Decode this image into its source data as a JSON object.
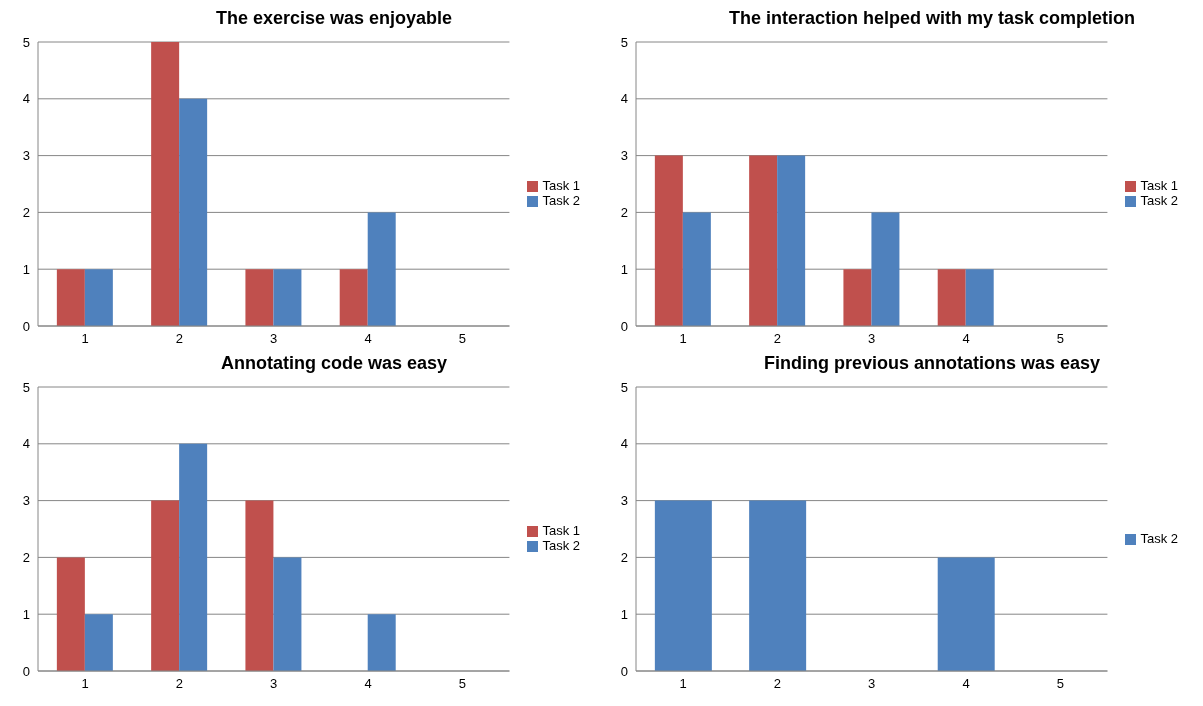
{
  "chart_data": [
    {
      "type": "bar",
      "title": "The exercise was enjoyable",
      "categories": [
        "1",
        "2",
        "3",
        "4",
        "5"
      ],
      "series": [
        {
          "name": "Task 1",
          "color": "#c0504d",
          "values": [
            1,
            5,
            1,
            1,
            0
          ]
        },
        {
          "name": "Task 2",
          "color": "#4f81bd",
          "values": [
            1,
            4,
            1,
            2,
            0
          ]
        }
      ],
      "ylim": [
        0,
        5
      ],
      "yticks": [
        0,
        1,
        2,
        3,
        4,
        5
      ],
      "grid": "y",
      "legend": "right"
    },
    {
      "type": "bar",
      "title": "The interaction helped with my task completion",
      "categories": [
        "1",
        "2",
        "3",
        "4",
        "5"
      ],
      "series": [
        {
          "name": "Task 1",
          "color": "#c0504d",
          "values": [
            3,
            3,
            1,
            1,
            0
          ]
        },
        {
          "name": "Task 2",
          "color": "#4f81bd",
          "values": [
            2,
            3,
            2,
            1,
            0
          ]
        }
      ],
      "ylim": [
        0,
        5
      ],
      "yticks": [
        0,
        1,
        2,
        3,
        4,
        5
      ],
      "grid": "y",
      "legend": "right"
    },
    {
      "type": "bar",
      "title": "Annotating code was easy",
      "categories": [
        "1",
        "2",
        "3",
        "4",
        "5"
      ],
      "series": [
        {
          "name": "Task 1",
          "color": "#c0504d",
          "values": [
            2,
            3,
            3,
            0,
            0
          ]
        },
        {
          "name": "Task 2",
          "color": "#4f81bd",
          "values": [
            1,
            4,
            2,
            1,
            0
          ]
        }
      ],
      "ylim": [
        0,
        5
      ],
      "yticks": [
        0,
        1,
        2,
        3,
        4,
        5
      ],
      "grid": "y",
      "legend": "right"
    },
    {
      "type": "bar",
      "title": "Finding previous annotations was easy",
      "categories": [
        "1",
        "2",
        "3",
        "4",
        "5"
      ],
      "series": [
        {
          "name": "Task 2",
          "color": "#4f81bd",
          "values": [
            3,
            3,
            0,
            2,
            0
          ]
        }
      ],
      "ylim": [
        0,
        5
      ],
      "yticks": [
        0,
        1,
        2,
        3,
        4,
        5
      ],
      "grid": "y",
      "legend": "right"
    }
  ]
}
